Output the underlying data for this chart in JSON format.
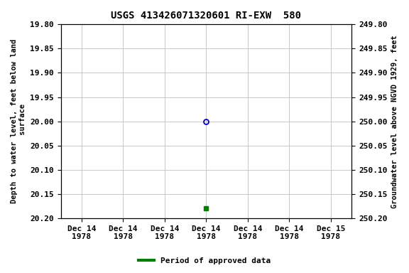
{
  "title": "USGS 413426071320601 RI-EXW  580",
  "ylabel_left": "Depth to water level, feet below land\n surface",
  "ylabel_right": "Groundwater level above NGVD 1929, feet",
  "ylim_left": [
    19.8,
    20.2
  ],
  "ylim_right": [
    249.8,
    250.2
  ],
  "y_ticks_left": [
    19.8,
    19.85,
    19.9,
    19.95,
    20.0,
    20.05,
    20.1,
    20.15,
    20.2
  ],
  "y_ticks_right": [
    249.8,
    249.85,
    249.9,
    249.95,
    250.0,
    250.05,
    250.1,
    250.15,
    250.2
  ],
  "data_points": [
    {
      "depth": 20.0,
      "style": "open_circle",
      "color": "#0000cc"
    },
    {
      "depth": 20.18,
      "style": "filled_square",
      "color": "#008000"
    }
  ],
  "x_tick_labels": [
    "Dec 14\n1978",
    "Dec 14\n1978",
    "Dec 14\n1978",
    "Dec 14\n1978",
    "Dec 14\n1978",
    "Dec 14\n1978",
    "Dec 15\n1978"
  ],
  "legend_label": "Period of approved data",
  "legend_color": "#008000",
  "background_color": "#ffffff",
  "grid_color": "#c0c0c0",
  "title_fontsize": 10,
  "label_fontsize": 7.5,
  "tick_fontsize": 8
}
